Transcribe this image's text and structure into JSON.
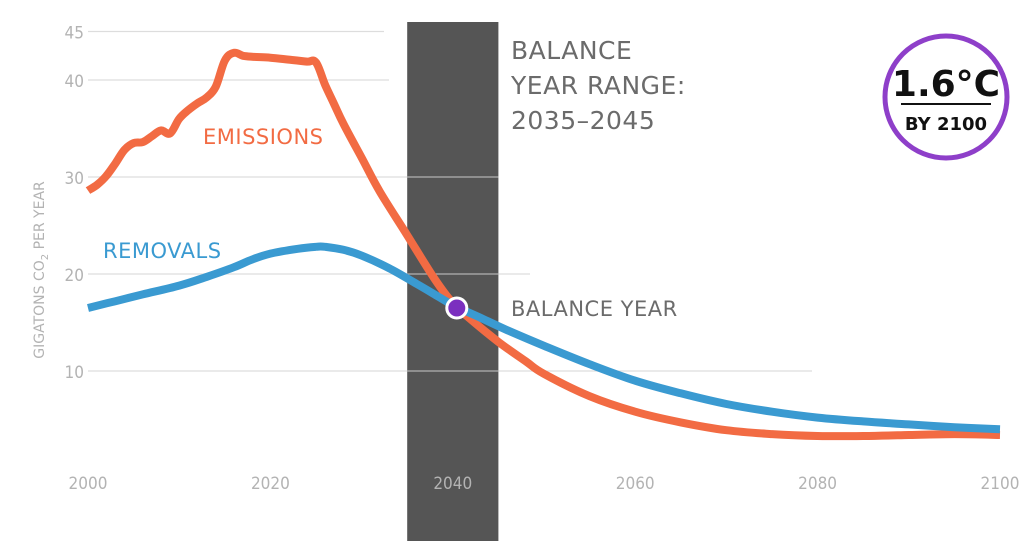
{
  "chart_data": {
    "type": "line",
    "ylabel": "GIGATONS CO2 PER YEAR",
    "xlim": [
      2000,
      2100
    ],
    "ylim": [
      0,
      45
    ],
    "x_ticks": [
      2000,
      2020,
      2040,
      2060,
      2080,
      2100
    ],
    "y_ticks": [
      10,
      20,
      30,
      40,
      45
    ],
    "grid": "horizontal",
    "series": [
      {
        "name": "EMISSIONS",
        "color": "#f26b43",
        "x": [
          2000,
          2001,
          2002,
          2003,
          2004,
          2005,
          2006,
          2007,
          2008,
          2009,
          2010,
          2011,
          2012,
          2013,
          2014,
          2015,
          2016,
          2017,
          2018,
          2020,
          2022,
          2024,
          2025,
          2026,
          2027,
          2028,
          2030,
          2032,
          2035,
          2038,
          2040,
          2042,
          2045,
          2048,
          2050,
          2055,
          2060,
          2065,
          2070,
          2075,
          2080,
          2085,
          2090,
          2095,
          2100
        ],
        "y": [
          28.6,
          29.2,
          30.1,
          31.4,
          32.8,
          33.5,
          33.6,
          34.2,
          34.8,
          34.5,
          36.0,
          36.9,
          37.6,
          38.2,
          39.3,
          42.0,
          42.8,
          42.5,
          42.4,
          42.3,
          42.1,
          41.9,
          41.8,
          39.5,
          37.5,
          35.5,
          32.0,
          28.5,
          24.0,
          19.5,
          17.0,
          15.3,
          13.0,
          11.0,
          9.7,
          7.4,
          5.8,
          4.7,
          3.9,
          3.5,
          3.3,
          3.3,
          3.4,
          3.5,
          3.4
        ]
      },
      {
        "name": "REMOVALS",
        "color": "#3a9ad1",
        "x": [
          2000,
          2003,
          2006,
          2010,
          2013,
          2016,
          2018,
          2020,
          2023,
          2025,
          2026,
          2028,
          2030,
          2033,
          2036,
          2038,
          2040,
          2043,
          2046,
          2050,
          2055,
          2060,
          2065,
          2070,
          2075,
          2080,
          2085,
          2090,
          2095,
          2100
        ],
        "y": [
          16.5,
          17.2,
          17.9,
          18.8,
          19.7,
          20.7,
          21.5,
          22.1,
          22.6,
          22.8,
          22.8,
          22.5,
          21.9,
          20.6,
          19.0,
          17.9,
          16.8,
          15.5,
          14.2,
          12.6,
          10.7,
          9.0,
          7.7,
          6.6,
          5.8,
          5.2,
          4.8,
          4.5,
          4.2,
          4.0
        ]
      }
    ],
    "balance_range": {
      "start": 2035,
      "end": 2045
    },
    "balance_point": {
      "x": 2040,
      "y": 16.8
    },
    "annotations": {
      "range_title": [
        "BALANCE",
        "YEAR RANGE:",
        "2035–2045"
      ],
      "balance_year": "BALANCE YEAR",
      "emissions_label": "EMISSIONS",
      "removals_label": "REMOVALS"
    },
    "badge": {
      "main": "1.6°C",
      "sub": "BY 2100",
      "color": "#8e3fc9"
    }
  }
}
